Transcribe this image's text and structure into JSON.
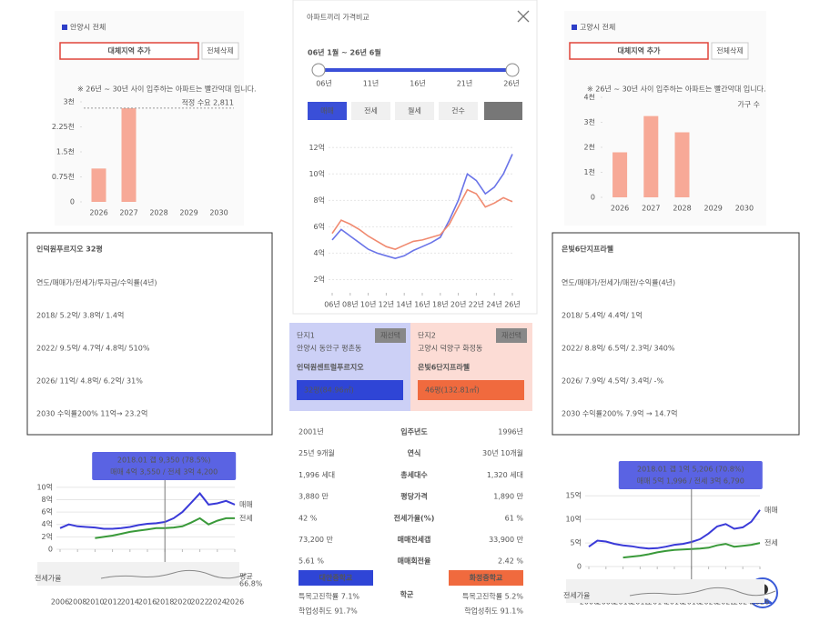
{
  "left": {
    "region": "안양시 전체",
    "add_button": "대체지역 추가",
    "delete_button": "전체삭제",
    "note": "※ 26년 ~ 30년 사이 입주하는 아파트는 빨간막대 입니다.",
    "supply_chart": {
      "type": "bar",
      "categories": [
        "2026",
        "2027",
        "2028",
        "2029",
        "2030"
      ],
      "values": [
        1000,
        2811,
        0,
        0,
        0
      ],
      "color": "#f7a997",
      "ylim": [
        0,
        3000
      ],
      "yticks": [
        0,
        {
          "value": 750,
          "label": "0.75천"
        },
        {
          "value": 1500,
          "label": "1.5천"
        },
        {
          "value": 2250,
          "label": "2.25천"
        },
        {
          "value": 3000,
          "label": "3천"
        }
      ],
      "reference": {
        "value": 2811,
        "label": "적정 수요 2,811"
      }
    },
    "summary": {
      "title": "인덕원푸르지오 32평",
      "lines": [
        "연도/매매가/전세가/투자금/수익률(4년)",
        "2018/ 5.2억/ 3.8억/ 1.4억",
        "2022/ 9.5억/ 4.7억/ 4.8억/ 510%",
        "2026/ 11억/ 4.8억/ 6.2억/ 31%",
        "2030 수익률200% 11억→ 23.2억"
      ]
    },
    "price_chart": {
      "type": "line",
      "tooltip": [
        "2018.01 갭 9,350 (78.5%)",
        "매매 4억 3,550 / 전세 3억 4,200"
      ],
      "x": [
        2006,
        2007,
        2008,
        2009,
        2010,
        2011,
        2012,
        2013,
        2014,
        2015,
        2016,
        2017,
        2018,
        2019,
        2020,
        2021,
        2022,
        2023,
        2024,
        2025,
        2026
      ],
      "series": [
        {
          "name": "매매",
          "color": "#3a3ad8",
          "values": [
            3.4,
            4.0,
            3.7,
            3.6,
            3.5,
            3.3,
            3.3,
            3.4,
            3.6,
            3.9,
            4.1,
            4.2,
            4.4,
            5.0,
            6.0,
            7.5,
            9.0,
            7.2,
            7.4,
            7.8,
            7.2
          ]
        },
        {
          "name": "전세",
          "color": "#3a9a3a",
          "values": [
            null,
            null,
            null,
            null,
            1.8,
            2.0,
            2.2,
            2.5,
            2.8,
            3.0,
            3.2,
            3.4,
            3.4,
            3.5,
            3.7,
            4.3,
            5.0,
            4.0,
            4.6,
            5.0,
            5.0
          ]
        }
      ],
      "ylim": [
        0,
        11
      ],
      "yticks": [
        0,
        {
          "value": 2,
          "label": "2억"
        },
        {
          "value": 4,
          "label": "4억"
        },
        {
          "value": 6,
          "label": "6억"
        },
        {
          "value": 8,
          "label": "8억"
        },
        {
          "value": 10,
          "label": "10억"
        }
      ],
      "xticks": [
        2006,
        2008,
        2010,
        2012,
        2014,
        2016,
        2018,
        2020,
        2022,
        2024,
        2026
      ],
      "ratio_label": "전세가율",
      "ratio_avg_label": "평균",
      "ratio_avg": "66.8%"
    }
  },
  "center": {
    "title": "아파트끼리 가격비교",
    "period": "06년 1월 ~ 26년 6월",
    "slider_labels": [
      "06년",
      "11년",
      "16년",
      "21년",
      "26년"
    ],
    "tabs": [
      "매매",
      "전세",
      "월세",
      "건수"
    ],
    "chart": {
      "type": "line",
      "x": [
        2006,
        2007,
        2008,
        2009,
        2010,
        2011,
        2012,
        2013,
        2014,
        2015,
        2016,
        2017,
        2018,
        2019,
        2020,
        2021,
        2022,
        2023,
        2024,
        2025,
        2026
      ],
      "series": [
        {
          "color": "#6a74e8",
          "values": [
            5.0,
            5.8,
            5.3,
            4.8,
            4.3,
            4.0,
            3.8,
            3.6,
            3.8,
            4.2,
            4.5,
            4.8,
            5.2,
            6.5,
            8.0,
            10.0,
            9.5,
            8.5,
            9.0,
            10.0,
            11.5
          ]
        },
        {
          "color": "#f08a70",
          "values": [
            5.5,
            6.5,
            6.2,
            5.8,
            5.3,
            4.9,
            4.5,
            4.3,
            4.6,
            4.9,
            5.0,
            5.2,
            5.4,
            6.2,
            7.5,
            8.8,
            8.5,
            7.5,
            7.8,
            8.2,
            7.9
          ]
        }
      ],
      "ylim": [
        1,
        12.5
      ],
      "yticks": [
        {
          "value": 2,
          "label": "2억"
        },
        {
          "value": 4,
          "label": "4억"
        },
        {
          "value": 6,
          "label": "6억"
        },
        {
          "value": 8,
          "label": "8억"
        },
        {
          "value": 10,
          "label": "10억"
        },
        {
          "value": 12,
          "label": "12억"
        }
      ],
      "xticks": [
        {
          "value": 2006,
          "label": "06년"
        },
        {
          "value": 2008,
          "label": "08년"
        },
        {
          "value": 2010,
          "label": "10년"
        },
        {
          "value": 2012,
          "label": "12년"
        },
        {
          "value": 2014,
          "label": "14년"
        },
        {
          "value": 2016,
          "label": "16년"
        },
        {
          "value": 2018,
          "label": "18년"
        },
        {
          "value": 2020,
          "label": "20년"
        },
        {
          "value": 2022,
          "label": "22년"
        },
        {
          "value": 2024,
          "label": "24년"
        },
        {
          "value": 2026,
          "label": "26년"
        }
      ]
    },
    "complex1": {
      "label": "단지1",
      "reselect": "재선택",
      "address": "안양시 동안구 평촌동",
      "name": "인덕원센트럴푸르지오",
      "size": "32평(84.96㎡)"
    },
    "complex2": {
      "label": "단지2",
      "reselect": "재선택",
      "address": "고양시 덕양구 화정동",
      "name": "은빛6단지프라웰",
      "size": "46평(132.81㎡)"
    },
    "table": {
      "rows": [
        [
          "2001년",
          "입주년도",
          "1996년"
        ],
        [
          "25년 9개월",
          "연식",
          "30년 10개월"
        ],
        [
          "1,996 세대",
          "총세대수",
          "1,320 세대"
        ],
        [
          "3,880 만",
          "평당가격",
          "1,890 만"
        ],
        [
          "42 %",
          "전세가율(%)",
          "61 %"
        ],
        [
          "73,200 만",
          "매매전세갭",
          "33,900 만"
        ],
        [
          "5.61 %",
          "매매회전율",
          "2.42 %"
        ]
      ],
      "school": {
        "label": "학군",
        "left": {
          "name": "대안중학교",
          "lines": [
            "특목고진학률 7.1%",
            "학업성취도 91.7%"
          ]
        },
        "right": {
          "name": "화정중학교",
          "lines": [
            "특목고진학률 5.2%",
            "학업성취도 91.1%"
          ]
        }
      }
    }
  },
  "right": {
    "region": "고양시 전체",
    "add_button": "대체지역 추가",
    "delete_button": "전체삭제",
    "note": "※ 26년 ~ 30년 사이 입주하는 아파트는 빨간막대 입니다.",
    "supply_chart": {
      "type": "bar",
      "categories": [
        "2026",
        "2027",
        "2028",
        "2029",
        "2030"
      ],
      "values": [
        1800,
        3250,
        2600,
        0,
        0
      ],
      "color": "#f7a997",
      "ylim": [
        0,
        4000
      ],
      "yticks": [
        0,
        {
          "value": 1000,
          "label": "1천"
        },
        {
          "value": 2000,
          "label": "2천"
        },
        {
          "value": 3000,
          "label": "3천"
        },
        {
          "value": 4000,
          "label": "4천"
        }
      ],
      "unit_label": "가구 수"
    },
    "summary": {
      "title": "은빛6단지프라웰",
      "lines": [
        "연도/매매가/전세가/매전/수익률(4년)",
        "2018/ 5.4억/ 4.4억/ 1억",
        "2022/ 8.8억/ 6.5억/ 2.3억/ 340%",
        "2026/ 7.9억/ 4.5억/ 3.4억/ -%",
        "2030 수익률200% 7.9억 → 14.7억"
      ]
    },
    "price_chart": {
      "type": "line",
      "tooltip": [
        "2018.01 갭 1억 5,206 (70.8%)",
        "매매 5억 1,996 / 전세 3억 6,790"
      ],
      "x": [
        2006,
        2007,
        2008,
        2009,
        2010,
        2011,
        2012,
        2013,
        2014,
        2015,
        2016,
        2017,
        2018,
        2019,
        2020,
        2021,
        2022,
        2023,
        2024,
        2025,
        2026
      ],
      "series": [
        {
          "name": "매매",
          "color": "#3a3ad8",
          "values": [
            4.2,
            5.5,
            5.3,
            4.8,
            4.5,
            4.3,
            4.0,
            3.8,
            3.9,
            4.2,
            4.6,
            4.8,
            5.2,
            5.8,
            7.0,
            8.5,
            9.0,
            8.0,
            8.3,
            9.5,
            12.0
          ]
        },
        {
          "name": "전세",
          "color": "#3a9a3a",
          "values": [
            null,
            null,
            null,
            null,
            1.9,
            2.1,
            2.3,
            2.6,
            3.0,
            3.3,
            3.5,
            3.6,
            3.7,
            3.8,
            4.0,
            4.5,
            4.8,
            4.2,
            4.4,
            4.6,
            5.0
          ]
        }
      ],
      "ylim": [
        0,
        16
      ],
      "yticks": [
        0,
        {
          "value": 5,
          "label": "5억"
        },
        {
          "value": 10,
          "label": "10억"
        },
        {
          "value": 15,
          "label": "15억"
        }
      ],
      "xticks": [
        2006,
        2008,
        2010,
        2012,
        2014,
        2016,
        2018,
        2020,
        2022,
        2024,
        2026
      ],
      "ratio_label": "전세가율"
    }
  }
}
